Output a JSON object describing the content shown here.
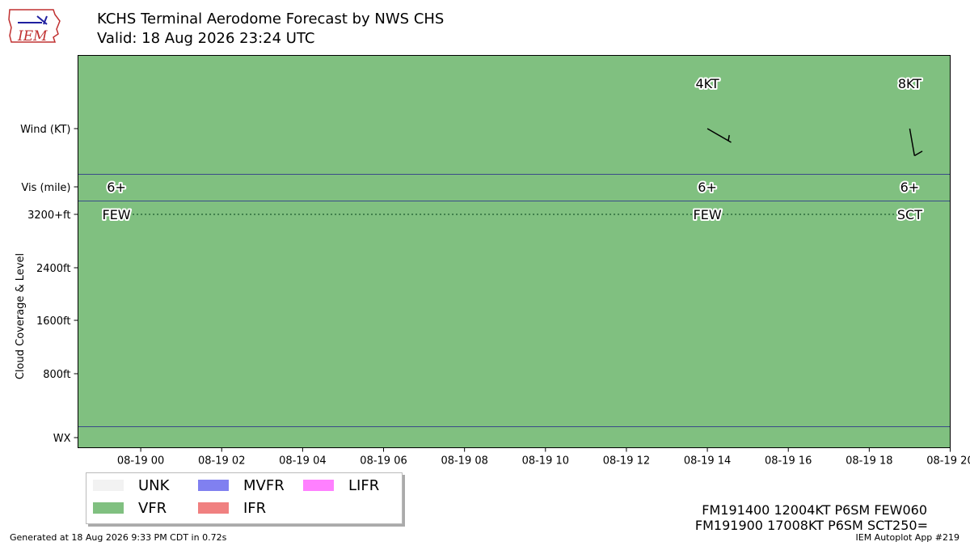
{
  "header": {
    "title": "KCHS Terminal Aerodome Forecast by NWS CHS",
    "valid": "Valid: 18 Aug 2026 23:24 UTC",
    "logo_text": "IEM"
  },
  "chart_data": {
    "type": "timeline",
    "x_tick_labels": [
      "08-19 00",
      "08-19 02",
      "08-19 04",
      "08-19 06",
      "08-19 08",
      "08-19 10",
      "08-19 12",
      "08-19 14",
      "08-19 16",
      "08-19 18",
      "08-19 20"
    ],
    "x_range_hours": [
      -1.55,
      20.0
    ],
    "y_row_labels": {
      "wind": "Wind (KT)",
      "vis": "Vis (mile)",
      "cloud_top": "3200+ft",
      "c2400": "2400ft",
      "c1600": "1600ft",
      "c800": "800ft",
      "wx": "WX"
    },
    "y_axis_title": "Cloud Coverage & Level",
    "background_category": "VFR",
    "category_colors": {
      "UNK": "#f2f2f2",
      "VFR": "#80c080",
      "MVFR": "#8080f0",
      "IFR": "#f08080",
      "LIFR": "#ff80ff"
    },
    "wind": [
      {
        "hour": 14,
        "label": "4KT",
        "dir_deg": 120,
        "speed_kt": 4
      },
      {
        "hour": 19,
        "label": "8KT",
        "dir_deg": 170,
        "speed_kt": 8
      }
    ],
    "visibility": [
      {
        "hour": -0.6,
        "label": "6+"
      },
      {
        "hour": 14,
        "label": "6+"
      },
      {
        "hour": 19,
        "label": "6+"
      }
    ],
    "clouds": [
      {
        "hour": -0.6,
        "label": "FEW"
      },
      {
        "hour": 14,
        "label": "FEW"
      },
      {
        "hour": 19,
        "label": "SCT"
      }
    ]
  },
  "legend": [
    {
      "label": "UNK",
      "color": "#f2f2f2"
    },
    {
      "label": "VFR",
      "color": "#80c080"
    },
    {
      "label": "MVFR",
      "color": "#8080f0"
    },
    {
      "label": "IFR",
      "color": "#f08080"
    },
    {
      "label": "LIFR",
      "color": "#ff80ff"
    }
  ],
  "taf_lines": [
    "FM191400 12004KT P6SM FEW060",
    "FM191900 17008KT P6SM SCT250="
  ],
  "footer": {
    "generated": "Generated at 18 Aug 2026 9:33 PM CDT in 0.72s",
    "app": "IEM Autoplot App #219"
  }
}
